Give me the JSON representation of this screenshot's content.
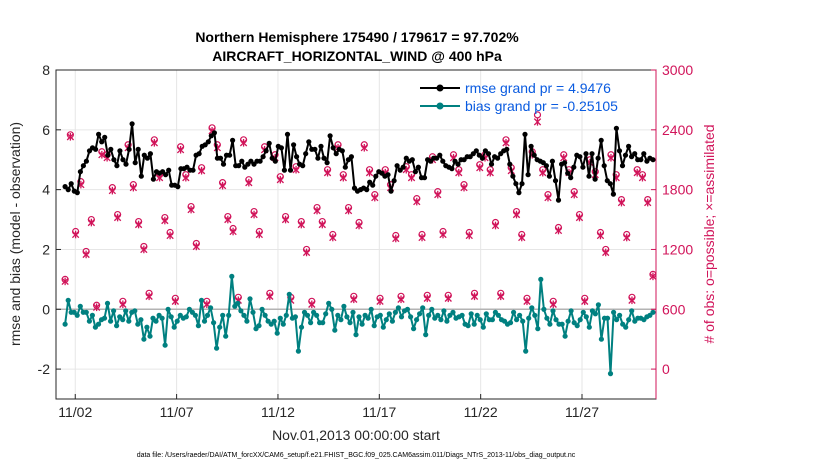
{
  "chart_data": {
    "type": "line",
    "title": "Northern Hemisphere 175490 / 179617 = 97.702%",
    "subtitle": "AIRCRAFT_HORIZONTAL_WIND @ 400 hPa",
    "xlabel": "Nov.01,2013 00:00:00 start",
    "ylabel": "rmse and bias (model - observation)",
    "y2label": "# of obs: o=possible; ×=assimilated",
    "footer": "data file: /Users/raeder/DAI/ATM_forcXX/CAM6_setup/f.e21.FHIST_BGC.f09_025.CAM6assim.011/Diags_NTrS_2013-11/obs_diag_output.nc",
    "xlim": [
      0.55,
      30.15
    ],
    "ylim": [
      -3,
      8
    ],
    "y2lim": [
      -300,
      3000
    ],
    "x_ticks": [
      1.5,
      6.5,
      11.5,
      16.5,
      21.5,
      26.5
    ],
    "x_tick_labels": [
      "11/02",
      "11/07",
      "11/12",
      "11/17",
      "11/22",
      "11/27"
    ],
    "y_ticks": [
      -2,
      0,
      2,
      4,
      6,
      8
    ],
    "y_tick_labels": [
      "-2",
      "0",
      "2",
      "4",
      "6",
      "8"
    ],
    "y2_ticks": [
      0,
      600,
      1200,
      1800,
      2400,
      3000
    ],
    "y2_tick_labels": [
      "0",
      "600",
      "1200",
      "1800",
      "2400",
      "3000"
    ],
    "grid": true,
    "colors": {
      "rmse": "#000000",
      "bias": "#008080",
      "obs": "#d1145a",
      "zero": "#b3b3b3",
      "legend_text": "#0a5be0"
    },
    "series": [
      {
        "name": "rmse grand pr = 4.9476",
        "axis": "left",
        "color": "#000000",
        "marker": "dot",
        "values": [
          4.1,
          4.0,
          4.2,
          3.95,
          3.9,
          4.6,
          4.8,
          4.95,
          5.3,
          5.4,
          5.35,
          5.85,
          5.6,
          5.75,
          5.15,
          5.35,
          5.0,
          4.8,
          5.3,
          5.0,
          4.85,
          5.35,
          6.2,
          4.9,
          5.35,
          4.45,
          5.15,
          5.05,
          5.2,
          4.35,
          4.6,
          4.55,
          4.6,
          4.5,
          4.65,
          4.15,
          4.15,
          4.1,
          4.7,
          4.7,
          4.75,
          4.65,
          4.65,
          5.15,
          5.2,
          5.45,
          5.5,
          5.6,
          5.8,
          5.9,
          5.05,
          5.05,
          4.85,
          5.15,
          5.15,
          5.65,
          4.8,
          4.8,
          4.95,
          4.75,
          4.85,
          4.95,
          4.85,
          4.95,
          4.95,
          5.1,
          5.3,
          5.55,
          5.05,
          4.95,
          5.45,
          5.4,
          4.65,
          5.85,
          4.65,
          5.5,
          5.1,
          4.85,
          4.8,
          5.2,
          5.6,
          5.35,
          5.35,
          5.05,
          5.45,
          5.05,
          4.9,
          5.8,
          5.4,
          5.2,
          5.35,
          5.3,
          4.75,
          5.0,
          5.1,
          4.05,
          3.95,
          4.0,
          4.05,
          4.0,
          4.25,
          4.15,
          4.45,
          4.6,
          4.55,
          4.45,
          4.5,
          3.95,
          4.3,
          4.8,
          4.65,
          4.75,
          5.05,
          4.95,
          5.0,
          4.6,
          4.75,
          4.4,
          4.4,
          5.0,
          4.95,
          5.05,
          5.05,
          5.15,
          4.95,
          4.8,
          4.75,
          4.7,
          4.95,
          4.85,
          5.0,
          5.0,
          5.1,
          5.1,
          5.2,
          5.3,
          5.15,
          5.05,
          5.3,
          5.2,
          4.85,
          5.1,
          5.05,
          5.2,
          5.3,
          5.35,
          4.85,
          4.45,
          4.2,
          3.9,
          4.2,
          5.85,
          4.5,
          5.45,
          5.15,
          5.0,
          4.95,
          4.9,
          4.8,
          4.45,
          4.95,
          4.3,
          3.65,
          4.85,
          4.9,
          4.55,
          4.4,
          4.75,
          5.15,
          5.1,
          4.75,
          5.2,
          4.45,
          5.2,
          4.35,
          5.05,
          5.65,
          4.8,
          4.3,
          4.2,
          3.85,
          6.05,
          5.3,
          4.8,
          5.15,
          5.45,
          5.1,
          5.2,
          5.0,
          5.0,
          5.2,
          4.95,
          5.05,
          5.0
        ]
      },
      {
        "name": "bias grand pr = -0.25105",
        "axis": "left",
        "color": "#008080",
        "marker": "dot",
        "values": [
          -0.5,
          0.3,
          -0.1,
          -0.1,
          -0.2,
          0.1,
          -0.1,
          -0.1,
          -0.4,
          -0.2,
          -0.6,
          -0.5,
          -0.35,
          -0.3,
          0.2,
          -0.4,
          -0.05,
          -0.55,
          -0.25,
          -0.35,
          -0.05,
          -0.4,
          -0.1,
          -0.05,
          -0.5,
          -0.35,
          -1.0,
          -0.6,
          -0.9,
          -0.3,
          -0.4,
          -0.2,
          -0.3,
          -1.2,
          0.0,
          -0.25,
          -0.6,
          -0.4,
          -0.2,
          -0.3,
          -0.25,
          0.0,
          -0.1,
          -0.2,
          -0.55,
          0.3,
          -0.4,
          -0.2,
          0.05,
          -0.45,
          -1.3,
          -0.6,
          -0.2,
          -0.9,
          -0.2,
          1.1,
          0.1,
          0.2,
          -0.05,
          -0.2,
          -0.4,
          0.35,
          -0.1,
          -0.65,
          -0.55,
          0.0,
          -0.2,
          -0.4,
          -0.5,
          -0.4,
          -0.8,
          -0.3,
          -0.5,
          -0.2,
          0.5,
          -0.3,
          -0.25,
          -1.4,
          -0.6,
          -0.1,
          -0.2,
          -0.45,
          -0.1,
          -0.2,
          -0.45,
          -0.45,
          -0.15,
          0.2,
          0.0,
          -0.7,
          -0.2,
          -0.35,
          0.1,
          -0.25,
          -0.45,
          -0.1,
          -0.85,
          -0.25,
          -0.5,
          -0.2,
          -0.3,
          0.0,
          -0.55,
          -0.25,
          -0.2,
          -0.6,
          -0.35,
          -0.15,
          -0.4,
          -0.1,
          0.05,
          -0.25,
          -0.05,
          0.0,
          -0.25,
          -0.65,
          -0.35,
          -0.15,
          0.05,
          -0.85,
          -0.2,
          0.0,
          -0.3,
          -0.2,
          -0.35,
          -0.05,
          -0.4,
          -0.2,
          -0.1,
          -0.3,
          -0.25,
          -0.2,
          -0.5,
          -0.55,
          -0.15,
          -0.5,
          -0.2,
          -0.35,
          -0.6,
          -0.15,
          -0.35,
          -0.35,
          -0.1,
          -0.2,
          -0.35,
          -0.4,
          -0.5,
          -0.45,
          -0.1,
          -0.35,
          -0.2,
          -0.4,
          -1.4,
          -0.3,
          0.05,
          -0.2,
          -0.65,
          1.0,
          0.0,
          -0.3,
          -0.5,
          -0.05,
          -0.35,
          -0.5,
          -0.5,
          -0.9,
          -0.4,
          -0.05,
          -0.45,
          -0.55,
          -0.35,
          -0.1,
          -0.25,
          -0.6,
          -0.05,
          -0.15,
          0.15,
          -1.0,
          -0.3,
          -0.3,
          -2.15,
          -0.1,
          -0.35,
          -0.2,
          -0.5,
          -0.6,
          -0.35,
          -0.05,
          -0.4,
          -0.3,
          -0.3,
          -0.35,
          -0.25,
          -0.2,
          -0.1
        ]
      },
      {
        "name": "possible obs",
        "axis": "right",
        "color": "#d1145a",
        "marker": "circle",
        "values": [
          900,
          2350,
          1380,
          1880,
          1180,
          1500,
          640,
          2180,
          2150,
          1820,
          1550,
          680,
          2250,
          1850,
          1480,
          1230,
          760,
          2300,
          1950,
          1520,
          1370,
          710,
          2230,
          1950,
          1630,
          1260,
          2020,
          680,
          2420,
          2250,
          1870,
          1530,
          1410,
          720,
          2300,
          1900,
          1580,
          1380,
          2230,
          760,
          2150,
          1930,
          1530,
          720,
          2030,
          1480,
          1200,
          680,
          1620,
          1480,
          2000,
          1350,
          2250,
          1950,
          1620,
          730,
          1470,
          2250,
          2000,
          1750,
          710,
          2000,
          1850,
          1340,
          730,
          2030,
          1950,
          1710,
          1350,
          740,
          2130,
          1780,
          1380,
          740,
          2150,
          2000,
          1850,
          1370,
          760,
          2050,
          2150,
          2000,
          1470,
          760,
          2300,
          2020,
          1580,
          1350,
          710,
          2180,
          2550,
          2000,
          1750,
          680,
          1420,
          2150,
          2000,
          1780,
          1550,
          710,
          2100,
          1980,
          1370,
          1200,
          2150,
          1950,
          1700,
          1350,
          720,
          2000,
          1950,
          1700,
          950
        ]
      },
      {
        "name": "assimilated obs",
        "axis": "right",
        "color": "#d1145a",
        "marker": "x",
        "values": [
          880,
          2330,
          1350,
          1850,
          1150,
          1470,
          620,
          2150,
          2120,
          1790,
          1520,
          650,
          2220,
          1820,
          1450,
          1200,
          730,
          2270,
          1920,
          1490,
          1340,
          680,
          2200,
          1920,
          1600,
          1230,
          1990,
          650,
          2390,
          2220,
          1840,
          1500,
          1380,
          690,
          2270,
          1870,
          1550,
          1350,
          2200,
          730,
          2120,
          1900,
          1500,
          690,
          2000,
          1450,
          1170,
          650,
          1590,
          1450,
          1970,
          1320,
          2220,
          1920,
          1590,
          700,
          1440,
          2220,
          1970,
          1720,
          680,
          1970,
          1820,
          1310,
          700,
          2000,
          1920,
          1680,
          1320,
          710,
          2100,
          1750,
          1350,
          710,
          2120,
          1970,
          1820,
          1340,
          730,
          2020,
          2120,
          1970,
          1440,
          730,
          2270,
          1990,
          1550,
          1320,
          680,
          2150,
          2480,
          1970,
          1720,
          650,
          1390,
          2120,
          1970,
          1750,
          1520,
          680,
          2070,
          1950,
          1340,
          1170,
          2120,
          1920,
          1670,
          1320,
          690,
          1970,
          1920,
          1670,
          930
        ]
      }
    ]
  }
}
